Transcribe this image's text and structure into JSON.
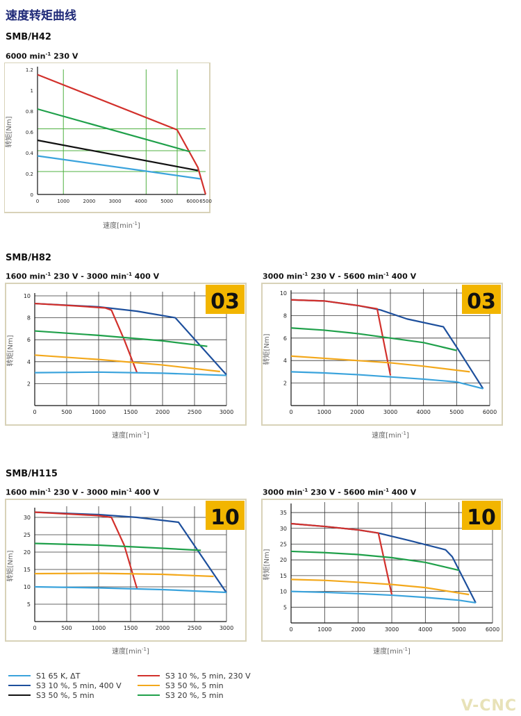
{
  "page_title": "速度转矩曲线",
  "watermark": "V-CNC",
  "sections": {
    "h42": {
      "model": "SMB/H42",
      "cond_a": "6000 min",
      "cond_sup": "-1",
      "cond_b": " 230 V"
    },
    "h82": {
      "model": "SMB/H82",
      "left": {
        "c1": "1600 min",
        "s1": "-1",
        "c2": " 230 V - 3000 min",
        "s2": "-1",
        "c3": " 400 V"
      },
      "right": {
        "c1": "3000 min",
        "s1": "-1",
        "c2": " 230 V - 5600 min",
        "s2": "-1",
        "c3": " 400 V"
      }
    },
    "h115": {
      "model": "SMB/H115",
      "left": {
        "c1": "1600 min",
        "s1": "-1",
        "c2": " 230 V - 3000 min",
        "s2": "-1",
        "c3": " 400 V"
      },
      "right": {
        "c1": "3000 min",
        "s1": "-1",
        "c2": " 230 V - 5600 min",
        "s2": "-1",
        "c3": " 400 V"
      }
    }
  },
  "colors": {
    "light_blue": "#3aa3dc",
    "dark_blue": "#1d4f9c",
    "black": "#111111",
    "red": "#d2302b",
    "orange": "#f3a81b",
    "green": "#1fa04a",
    "badge": "#f2b500",
    "frame": "#d8d2b8",
    "grid_green": "#4fb040"
  },
  "legend": [
    {
      "label": "S1 65 K, ΔT",
      "color": "#3aa3dc"
    },
    {
      "label": "S3 10 %, 5 min, 400 V",
      "color": "#1d4f9c"
    },
    {
      "label": "S3 50 %, 5 min",
      "color": "#111111"
    },
    {
      "label": "S3 10 %, 5 min, 230 V",
      "color": "#d2302b"
    },
    {
      "label": "S3 50 %, 5 min",
      "color": "#f3a81b"
    },
    {
      "label": "S3 20 %, 5 min",
      "color": "#1fa04a"
    }
  ],
  "chart_data": [
    {
      "id": "h42",
      "type": "line",
      "xlabel": "速度[min",
      "xlabel_sup": "-1",
      "xlabel_end": "]",
      "ylabel": "转矩[Nm]",
      "xlim": [
        0,
        6500
      ],
      "ylim": [
        0,
        1.2
      ],
      "xticks": [
        0,
        1000,
        2000,
        3000,
        4000,
        5000,
        6000,
        6500
      ],
      "yticks": [
        0,
        0.2,
        0.4,
        0.6,
        0.8,
        1,
        1.2
      ],
      "grid_x": [
        1000,
        4200,
        5400
      ],
      "grid_y": [
        0.22,
        0.42,
        0.63
      ],
      "series": [
        {
          "color": "#d2302b",
          "x": [
            0,
            5400,
            6000,
            6200,
            6500
          ],
          "y": [
            1.15,
            0.62,
            0.35,
            0.26,
            0.0
          ]
        },
        {
          "color": "#1fa04a",
          "x": [
            0,
            5900
          ],
          "y": [
            0.82,
            0.41
          ]
        },
        {
          "color": "#111111",
          "x": [
            0,
            6200
          ],
          "y": [
            0.52,
            0.23
          ]
        },
        {
          "color": "#3aa3dc",
          "x": [
            0,
            6300
          ],
          "y": [
            0.37,
            0.15
          ]
        }
      ]
    },
    {
      "id": "h82a",
      "type": "line",
      "badge": "03",
      "xlabel": "速度[min",
      "xlabel_sup": "-1",
      "xlabel_end": "]",
      "ylabel": "转矩[Nm]",
      "xlim": [
        0,
        3000
      ],
      "ylim": [
        0,
        10
      ],
      "xticks": [
        0,
        500,
        1000,
        1500,
        2000,
        2500,
        3000
      ],
      "yticks": [
        2,
        4,
        6,
        8,
        10
      ],
      "series": [
        {
          "color": "#1d4f9c",
          "x": [
            0,
            1000,
            1600,
            2200,
            3000
          ],
          "y": [
            9.3,
            9.0,
            8.6,
            8.0,
            2.8
          ]
        },
        {
          "color": "#d2302b",
          "x": [
            0,
            600,
            1100,
            1200,
            1400,
            1600
          ],
          "y": [
            9.3,
            9.1,
            8.9,
            8.7,
            6.0,
            3.0
          ]
        },
        {
          "color": "#1fa04a",
          "x": [
            0,
            1000,
            2000,
            2700
          ],
          "y": [
            6.8,
            6.4,
            5.9,
            5.4
          ]
        },
        {
          "color": "#f3a81b",
          "x": [
            0,
            1000,
            2000,
            2900
          ],
          "y": [
            4.6,
            4.2,
            3.7,
            3.1
          ]
        },
        {
          "color": "#3aa3dc",
          "x": [
            0,
            1000,
            2000,
            3000
          ],
          "y": [
            3.0,
            3.05,
            2.95,
            2.75
          ]
        }
      ]
    },
    {
      "id": "h82b",
      "type": "line",
      "badge": "03",
      "xlabel": "速度[min",
      "xlabel_sup": "-1",
      "xlabel_end": "]",
      "ylabel": "转矩[Nm]",
      "xlim": [
        0,
        6000
      ],
      "ylim": [
        0,
        10
      ],
      "xticks": [
        0,
        1000,
        2000,
        3000,
        4000,
        5000,
        6000
      ],
      "yticks": [
        2,
        4,
        6,
        8,
        10
      ],
      "series": [
        {
          "color": "#1d4f9c",
          "x": [
            0,
            1000,
            2000,
            2700,
            3500,
            4600,
            5000,
            5800
          ],
          "y": [
            9.4,
            9.3,
            8.9,
            8.5,
            7.7,
            7.0,
            5.2,
            1.5
          ]
        },
        {
          "color": "#d2302b",
          "x": [
            0,
            1000,
            2000,
            2600,
            3000
          ],
          "y": [
            9.4,
            9.3,
            8.9,
            8.6,
            2.7
          ]
        },
        {
          "color": "#1fa04a",
          "x": [
            0,
            1000,
            2000,
            3000,
            4000,
            5000
          ],
          "y": [
            6.9,
            6.7,
            6.4,
            6.0,
            5.6,
            4.9
          ]
        },
        {
          "color": "#f3a81b",
          "x": [
            0,
            1000,
            2000,
            3000,
            4000,
            5400
          ],
          "y": [
            4.4,
            4.2,
            4.0,
            3.8,
            3.5,
            3.0
          ]
        },
        {
          "color": "#3aa3dc",
          "x": [
            0,
            1000,
            2000,
            3000,
            4000,
            5000,
            5800
          ],
          "y": [
            3.0,
            2.9,
            2.75,
            2.55,
            2.35,
            2.1,
            1.5
          ]
        }
      ]
    },
    {
      "id": "h115a",
      "type": "line",
      "badge": "10",
      "xlabel": "速度[min",
      "xlabel_sup": "-1",
      "xlabel_end": "]",
      "ylabel": "转矩[Nm]",
      "xlim": [
        0,
        3000
      ],
      "ylim": [
        0,
        32
      ],
      "xticks": [
        0,
        500,
        1000,
        1500,
        2000,
        2500,
        3000
      ],
      "yticks": [
        5,
        10,
        15,
        20,
        25,
        30
      ],
      "series": [
        {
          "color": "#1d4f9c",
          "x": [
            0,
            1000,
            1600,
            2250,
            3000
          ],
          "y": [
            31.5,
            30.8,
            30.0,
            28.6,
            8.3
          ]
        },
        {
          "color": "#d2302b",
          "x": [
            0,
            500,
            1000,
            1200,
            1400,
            1600
          ],
          "y": [
            31.5,
            31.0,
            30.5,
            30.0,
            22.0,
            9.5
          ]
        },
        {
          "color": "#1fa04a",
          "x": [
            0,
            1000,
            2000,
            2600
          ],
          "y": [
            22.5,
            22.0,
            21.1,
            20.5
          ]
        },
        {
          "color": "#f3a81b",
          "x": [
            0,
            1000,
            2000,
            2800
          ],
          "y": [
            13.8,
            13.9,
            13.6,
            13.0
          ]
        },
        {
          "color": "#3aa3dc",
          "x": [
            0,
            1000,
            2000,
            3000
          ],
          "y": [
            10.0,
            9.7,
            9.2,
            8.4
          ]
        }
      ]
    },
    {
      "id": "h115b",
      "type": "line",
      "badge": "10",
      "xlabel": "速度[min",
      "xlabel_sup": "-1",
      "xlabel_end": "]",
      "ylabel": "转矩[Nm]",
      "xlim": [
        0,
        6000
      ],
      "ylim": [
        0,
        37
      ],
      "xticks": [
        0,
        1000,
        2000,
        3000,
        4000,
        5000,
        6000
      ],
      "yticks": [
        5,
        10,
        15,
        20,
        25,
        30,
        35
      ],
      "series": [
        {
          "color": "#1d4f9c",
          "x": [
            0,
            1000,
            2000,
            2600,
            3500,
            4600,
            4800,
            5500
          ],
          "y": [
            31.5,
            30.6,
            29.5,
            28.5,
            26.2,
            23.2,
            21.0,
            6.4
          ]
        },
        {
          "color": "#d2302b",
          "x": [
            0,
            1000,
            2000,
            2600,
            3000
          ],
          "y": [
            31.5,
            30.6,
            29.5,
            28.5,
            9.0
          ]
        },
        {
          "color": "#1fa04a",
          "x": [
            0,
            1000,
            2000,
            3000,
            4000,
            5000
          ],
          "y": [
            22.7,
            22.3,
            21.7,
            20.7,
            19.2,
            16.7
          ]
        },
        {
          "color": "#f3a81b",
          "x": [
            0,
            1000,
            2000,
            3000,
            4000,
            5300
          ],
          "y": [
            13.8,
            13.5,
            12.9,
            12.2,
            11.2,
            9.0
          ]
        },
        {
          "color": "#3aa3dc",
          "x": [
            0,
            1000,
            2000,
            3000,
            4000,
            5000,
            5500
          ],
          "y": [
            10.0,
            9.7,
            9.3,
            8.8,
            8.1,
            7.2,
            6.4
          ]
        }
      ]
    }
  ]
}
